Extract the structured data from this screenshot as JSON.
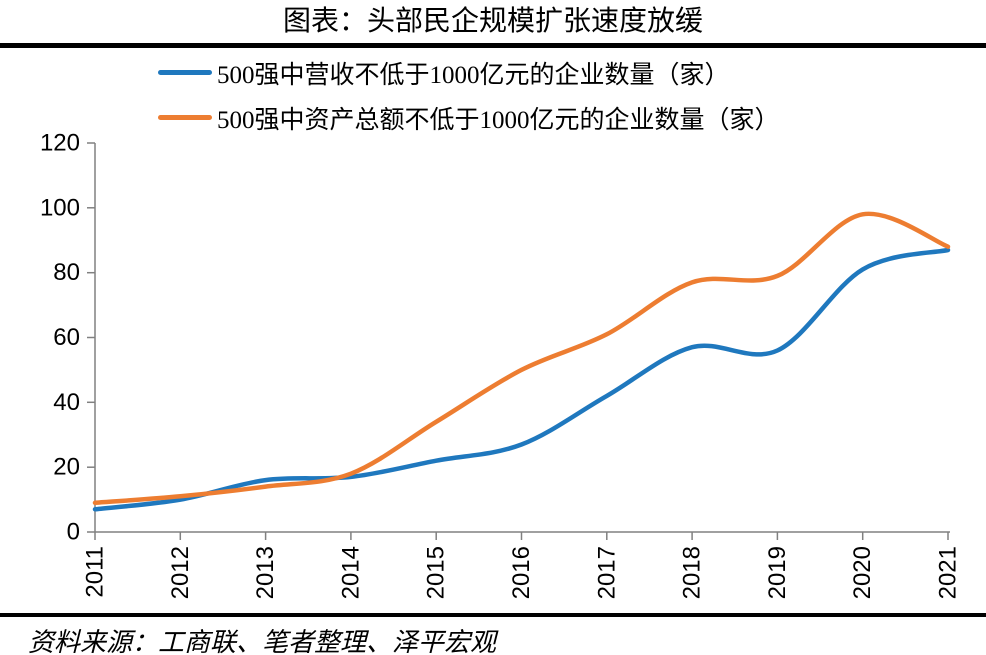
{
  "chart_data": {
    "type": "line",
    "title": "图表：头部民企规模扩张速度放缓",
    "source_note": "资料来源：工商联、笔者整理、泽平宏观",
    "x": [
      "2011",
      "2012",
      "2013",
      "2014",
      "2015",
      "2016",
      "2017",
      "2018",
      "2019",
      "2020",
      "2021"
    ],
    "series": [
      {
        "name": "500强中营收不低于1000亿元的企业数量（家）",
        "color": "#1F78BE",
        "values": [
          7,
          10,
          16,
          17,
          22,
          27,
          42,
          57,
          56,
          81,
          87
        ]
      },
      {
        "name": "500强中资产总额不低于1000亿元的企业数量（家）",
        "color": "#ED7D31",
        "values": [
          9,
          11,
          14,
          18,
          34,
          50,
          61,
          77,
          79,
          98,
          88
        ]
      }
    ],
    "ylim": [
      0,
      120
    ],
    "yticks": [
      0,
      20,
      40,
      60,
      80,
      100,
      120
    ],
    "xlabel": "",
    "ylabel": "",
    "grid": false,
    "legend_position": "top-left",
    "smooth_lines": true,
    "axis_color": "#808080",
    "tick_label_color": "#000000",
    "x_tick_label_rotation": -90
  }
}
